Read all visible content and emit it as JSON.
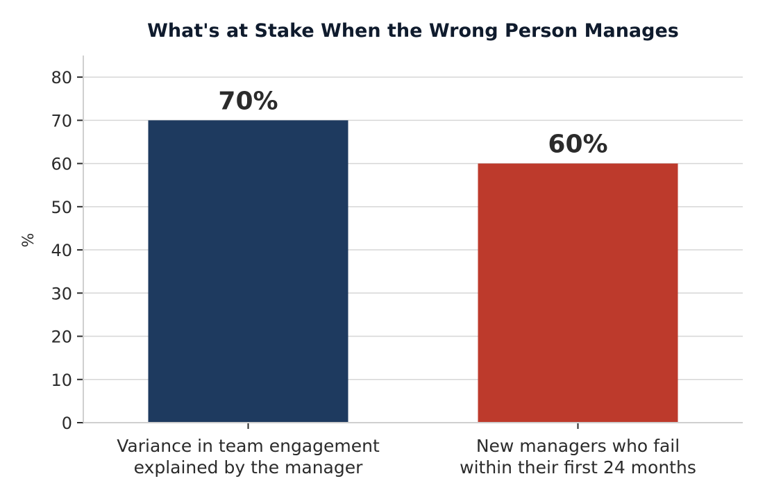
{
  "chart_data": {
    "type": "bar",
    "title": "What's at Stake When the Wrong Person Manages",
    "xlabel": "",
    "ylabel": "%",
    "ylim": [
      0,
      85
    ],
    "yticks": [
      0,
      10,
      20,
      30,
      40,
      50,
      60,
      70,
      80
    ],
    "grid": true,
    "categories": [
      [
        "Variance in team engagement",
        "explained by the manager"
      ],
      [
        "New managers who fail",
        "within their first 24 months"
      ]
    ],
    "values": [
      70,
      60
    ],
    "data_labels": [
      "70%",
      "60%"
    ],
    "colors": [
      "#1e3a5f",
      "#bd3a2c"
    ]
  }
}
